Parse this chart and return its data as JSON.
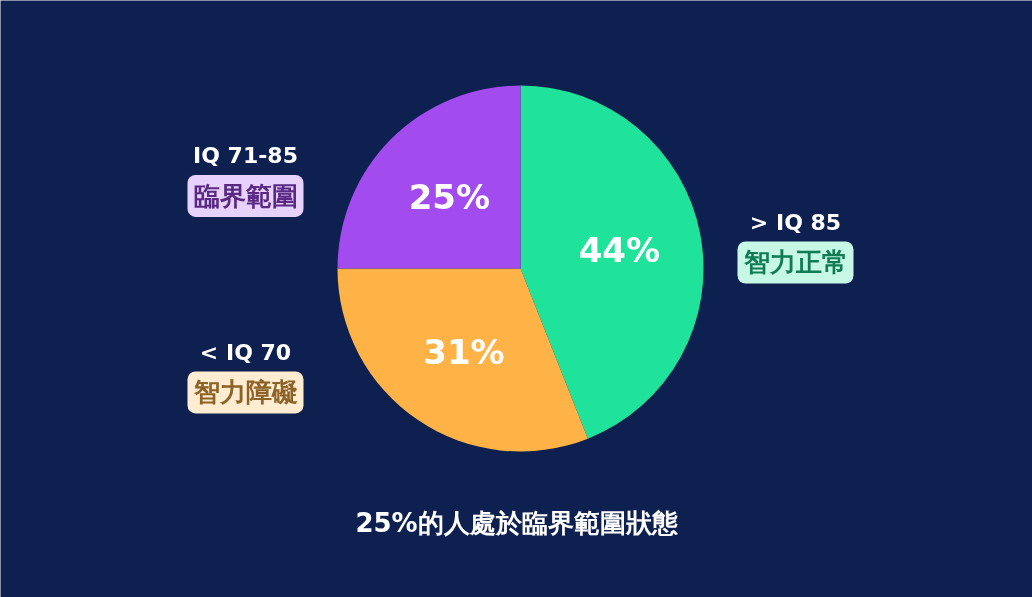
{
  "chart_data": {
    "type": "pie",
    "categories": [
      "> IQ 85\n智力正常",
      "< IQ 70\n智力障礙",
      "IQ 71-85\n臨界範圍"
    ],
    "values": [
      44,
      31,
      25
    ],
    "colors": [
      "#1fe39a",
      "#ffb347",
      "#a24cf0"
    ],
    "value_labels": [
      "44%",
      "31%",
      "25%"
    ],
    "annotations": [
      "25%的人處於臨界範圍狀態"
    ]
  }
}
